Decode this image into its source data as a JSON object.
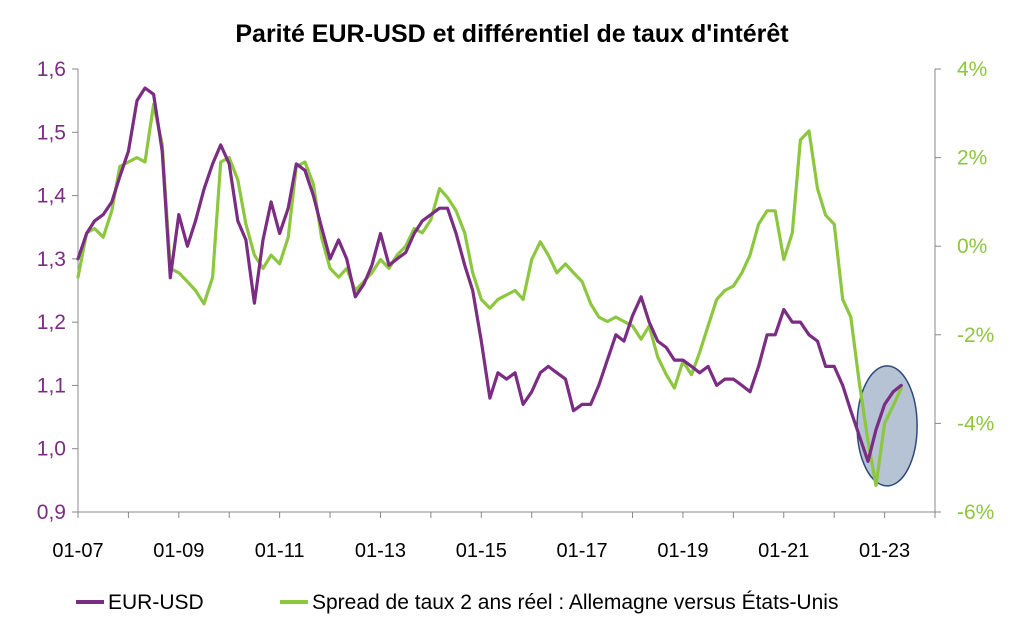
{
  "chart_data": {
    "type": "line",
    "title": "Parité EUR-USD et différentiel de taux d'intérêt",
    "xlabel": "",
    "x_tick_labels": [
      "01-07",
      "01-09",
      "01-11",
      "01-13",
      "01-15",
      "01-17",
      "01-19",
      "01-21",
      "01-23"
    ],
    "x_range": [
      2007.0,
      2024.0
    ],
    "left_axis": {
      "ylim": [
        0.9,
        1.6
      ],
      "ticks": [
        "0,9",
        "1,0",
        "1,1",
        "1,2",
        "1,3",
        "1,4",
        "1,5",
        "1,6"
      ],
      "color": "#7B2C83"
    },
    "right_axis": {
      "ylim": [
        -6,
        4
      ],
      "ticks": [
        "-6%",
        "-4%",
        "-2%",
        "0%",
        "2%",
        "4%"
      ],
      "color": "#8DC63F"
    },
    "grid": false,
    "legend_position": "bottom",
    "annotation": {
      "type": "ellipse",
      "around": "end of 2022 – 2023",
      "color": "#A8B8CC"
    },
    "series": [
      {
        "name": "EUR-USD",
        "axis": "left",
        "color": "#7B2C83",
        "x": [
          2007.0,
          2007.17,
          2007.33,
          2007.5,
          2007.67,
          2007.83,
          2008.0,
          2008.17,
          2008.33,
          2008.5,
          2008.67,
          2008.83,
          2009.0,
          2009.17,
          2009.33,
          2009.5,
          2009.67,
          2009.83,
          2010.0,
          2010.17,
          2010.33,
          2010.5,
          2010.67,
          2010.83,
          2011.0,
          2011.17,
          2011.33,
          2011.5,
          2011.67,
          2011.83,
          2012.0,
          2012.17,
          2012.33,
          2012.5,
          2012.67,
          2012.83,
          2013.0,
          2013.17,
          2013.33,
          2013.5,
          2013.67,
          2013.83,
          2014.0,
          2014.17,
          2014.33,
          2014.5,
          2014.67,
          2014.83,
          2015.0,
          2015.17,
          2015.33,
          2015.5,
          2015.67,
          2015.83,
          2016.0,
          2016.17,
          2016.33,
          2016.5,
          2016.67,
          2016.83,
          2017.0,
          2017.17,
          2017.33,
          2017.5,
          2017.67,
          2017.83,
          2018.0,
          2018.17,
          2018.33,
          2018.5,
          2018.67,
          2018.83,
          2019.0,
          2019.17,
          2019.33,
          2019.5,
          2019.67,
          2019.83,
          2020.0,
          2020.17,
          2020.33,
          2020.5,
          2020.67,
          2020.83,
          2021.0,
          2021.17,
          2021.33,
          2021.5,
          2021.67,
          2021.83,
          2022.0,
          2022.17,
          2022.33,
          2022.5,
          2022.67,
          2022.83,
          2023.0,
          2023.17,
          2023.33
        ],
        "values": [
          1.3,
          1.34,
          1.36,
          1.37,
          1.39,
          1.43,
          1.47,
          1.55,
          1.57,
          1.56,
          1.47,
          1.27,
          1.37,
          1.32,
          1.36,
          1.41,
          1.45,
          1.48,
          1.45,
          1.36,
          1.33,
          1.23,
          1.33,
          1.39,
          1.34,
          1.38,
          1.45,
          1.44,
          1.4,
          1.35,
          1.3,
          1.33,
          1.3,
          1.24,
          1.26,
          1.29,
          1.34,
          1.29,
          1.3,
          1.31,
          1.34,
          1.36,
          1.37,
          1.38,
          1.38,
          1.34,
          1.29,
          1.25,
          1.17,
          1.08,
          1.12,
          1.11,
          1.12,
          1.07,
          1.09,
          1.12,
          1.13,
          1.12,
          1.11,
          1.06,
          1.07,
          1.07,
          1.1,
          1.14,
          1.18,
          1.17,
          1.21,
          1.24,
          1.2,
          1.17,
          1.16,
          1.14,
          1.14,
          1.13,
          1.12,
          1.13,
          1.1,
          1.11,
          1.11,
          1.1,
          1.09,
          1.13,
          1.18,
          1.18,
          1.22,
          1.2,
          1.2,
          1.18,
          1.17,
          1.13,
          1.13,
          1.1,
          1.06,
          1.02,
          0.98,
          1.03,
          1.07,
          1.09,
          1.1
        ]
      },
      {
        "name": "Spread de taux 2 ans réel : Allemagne versus États-Unis",
        "axis": "right",
        "color": "#8DC63F",
        "x": [
          2007.0,
          2007.17,
          2007.33,
          2007.5,
          2007.67,
          2007.83,
          2008.0,
          2008.17,
          2008.33,
          2008.5,
          2008.67,
          2008.83,
          2009.0,
          2009.17,
          2009.33,
          2009.5,
          2009.67,
          2009.83,
          2010.0,
          2010.17,
          2010.33,
          2010.5,
          2010.67,
          2010.83,
          2011.0,
          2011.17,
          2011.33,
          2011.5,
          2011.67,
          2011.83,
          2012.0,
          2012.17,
          2012.33,
          2012.5,
          2012.67,
          2012.83,
          2013.0,
          2013.17,
          2013.33,
          2013.5,
          2013.67,
          2013.83,
          2014.0,
          2014.17,
          2014.33,
          2014.5,
          2014.67,
          2014.83,
          2015.0,
          2015.17,
          2015.33,
          2015.5,
          2015.67,
          2015.83,
          2016.0,
          2016.17,
          2016.33,
          2016.5,
          2016.67,
          2016.83,
          2017.0,
          2017.17,
          2017.33,
          2017.5,
          2017.67,
          2017.83,
          2018.0,
          2018.17,
          2018.33,
          2018.5,
          2018.67,
          2018.83,
          2019.0,
          2019.17,
          2019.33,
          2019.5,
          2019.67,
          2019.83,
          2020.0,
          2020.17,
          2020.33,
          2020.5,
          2020.67,
          2020.83,
          2021.0,
          2021.17,
          2021.33,
          2021.5,
          2021.67,
          2021.83,
          2022.0,
          2022.17,
          2022.33,
          2022.5,
          2022.67,
          2022.83,
          2023.0,
          2023.17,
          2023.33
        ],
        "values": [
          -0.7,
          0.3,
          0.4,
          0.2,
          0.8,
          1.8,
          1.9,
          2.0,
          1.9,
          3.2,
          2.3,
          -0.5,
          -0.6,
          -0.8,
          -1.0,
          -1.3,
          -0.7,
          1.9,
          2.0,
          1.5,
          0.5,
          -0.2,
          -0.5,
          -0.2,
          -0.4,
          0.2,
          1.8,
          1.9,
          1.4,
          0.2,
          -0.5,
          -0.7,
          -0.5,
          -1.0,
          -0.8,
          -0.6,
          -0.3,
          -0.5,
          -0.2,
          0.0,
          0.4,
          0.3,
          0.6,
          1.3,
          1.1,
          0.8,
          0.3,
          -0.6,
          -1.2,
          -1.4,
          -1.2,
          -1.1,
          -1.0,
          -1.2,
          -0.3,
          0.1,
          -0.2,
          -0.6,
          -0.4,
          -0.6,
          -0.8,
          -1.3,
          -1.6,
          -1.7,
          -1.6,
          -1.7,
          -1.8,
          -2.1,
          -1.8,
          -2.5,
          -2.9,
          -3.2,
          -2.6,
          -2.9,
          -2.4,
          -1.8,
          -1.2,
          -1.0,
          -0.9,
          -0.6,
          -0.2,
          0.5,
          0.8,
          0.8,
          -0.3,
          0.3,
          2.4,
          2.6,
          1.3,
          0.7,
          0.5,
          -1.2,
          -1.6,
          -3.1,
          -4.4,
          -5.4,
          -4.0,
          -3.6,
          -3.2
        ]
      }
    ]
  },
  "legend": {
    "items": [
      {
        "label": "EUR-USD",
        "color": "#7B2C83"
      },
      {
        "label": "Spread de taux 2 ans réel : Allemagne versus États-Unis",
        "color": "#8DC63F"
      }
    ]
  }
}
